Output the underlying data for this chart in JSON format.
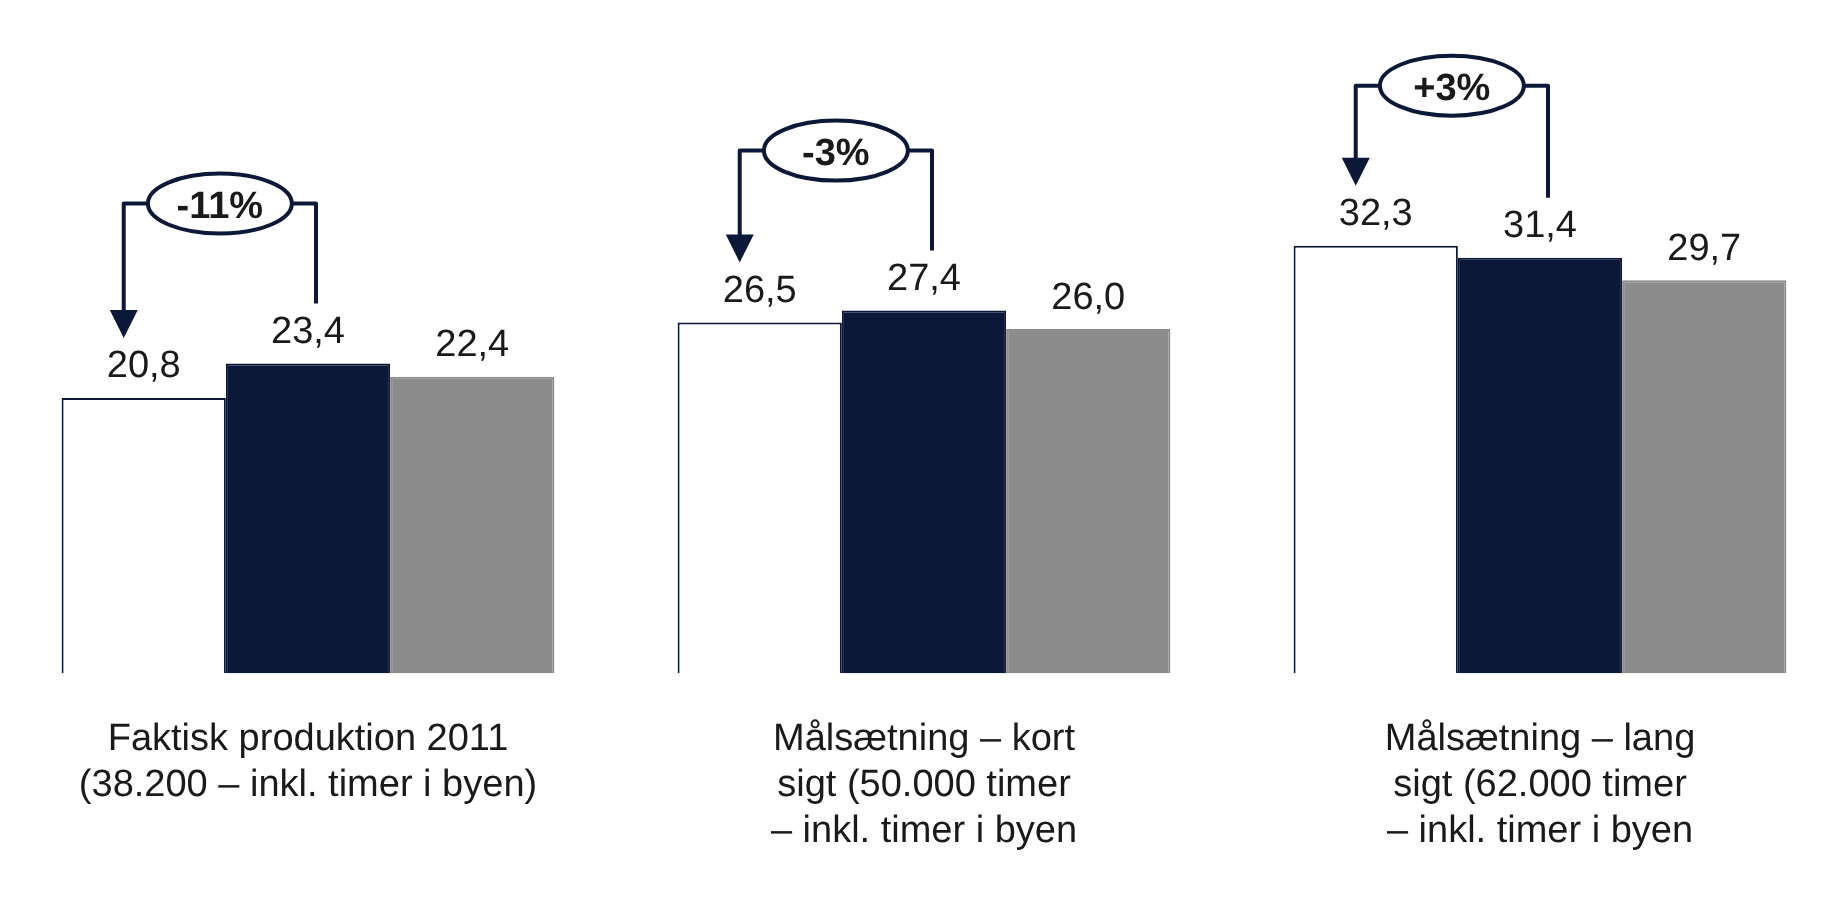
{
  "chart_data": {
    "type": "bar",
    "categories": [
      "Faktisk produktion 2011\n(38.200 – inkl. timer i byen)",
      "Målsætning – kort\nsigt (50.000 timer\n– inkl. timer i byen",
      "Målsætning – lang\nsigt (62.000 timer\n– inkl. timer i byen"
    ],
    "series": [
      {
        "color": "#ffffff",
        "values": [
          20.8,
          26.5,
          32.3
        ],
        "value_labels": [
          "20,8",
          "26,5",
          "32,3"
        ]
      },
      {
        "color": "#0b1838",
        "values": [
          23.4,
          27.4,
          31.4
        ],
        "value_labels": [
          "23,4",
          "27,4",
          "31,4"
        ]
      },
      {
        "color": "#8c8c8c",
        "values": [
          22.4,
          26.0,
          29.7
        ],
        "value_labels": [
          "22,4",
          "26,0",
          "29,7"
        ]
      }
    ],
    "legend": false,
    "annotations": [
      "-11%",
      "-3%",
      "+3%"
    ]
  }
}
